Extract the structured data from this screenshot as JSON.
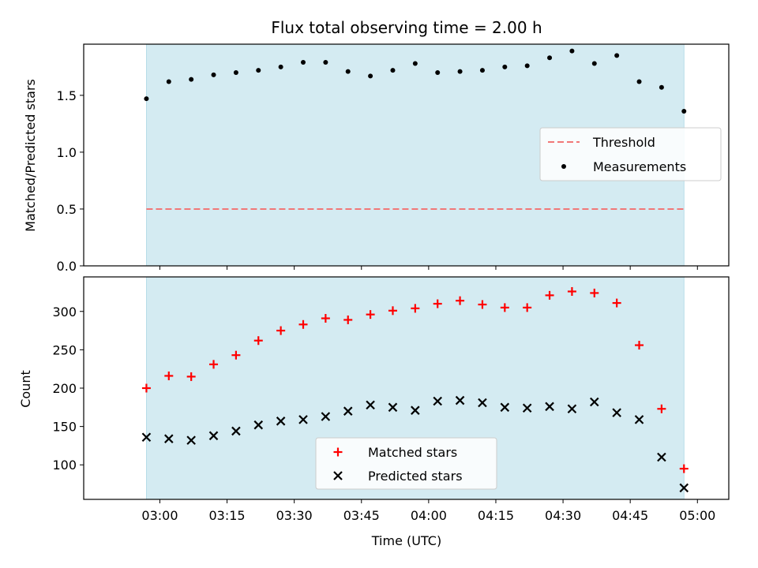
{
  "chart_data": [
    {
      "type": "scatter",
      "title": "Flux total observing time = 2.00 h",
      "ylabel": "Matched/Predicted stars",
      "ylim": [
        0.0,
        1.95
      ],
      "yticks": [
        0.0,
        0.5,
        1.0,
        1.5
      ],
      "ytick_labels": [
        "0.0",
        "0.5",
        "1.0",
        "1.5"
      ],
      "shaded_band": {
        "x_start": "02:57",
        "x_end": "04:57",
        "color": "#d4ebf2"
      },
      "legend_position": "center-right",
      "threshold": {
        "name": "Threshold",
        "y": 0.5,
        "x_start": "02:57",
        "x_end": "04:57",
        "color": "#f07878"
      },
      "series": [
        {
          "name": "Measurements",
          "color": "#000000",
          "x": [
            "02:57",
            "03:02",
            "03:07",
            "03:12",
            "03:17",
            "03:22",
            "03:27",
            "03:32",
            "03:37",
            "03:42",
            "03:47",
            "03:52",
            "03:57",
            "04:02",
            "04:07",
            "04:12",
            "04:17",
            "04:22",
            "04:27",
            "04:32",
            "04:37",
            "04:42",
            "04:47",
            "04:52",
            "04:57"
          ],
          "values": [
            1.47,
            1.62,
            1.64,
            1.68,
            1.7,
            1.72,
            1.75,
            1.79,
            1.79,
            1.71,
            1.67,
            1.72,
            1.78,
            1.7,
            1.71,
            1.72,
            1.75,
            1.76,
            1.83,
            1.89,
            1.78,
            1.85,
            1.62,
            1.57,
            1.36
          ]
        }
      ]
    },
    {
      "type": "scatter",
      "xlabel": "Time (UTC)",
      "ylabel": "Count",
      "xlim": [
        "02:43",
        "05:07"
      ],
      "ylim": [
        55,
        345
      ],
      "yticks": [
        100,
        150,
        200,
        250,
        300
      ],
      "ytick_labels": [
        "100",
        "150",
        "200",
        "250",
        "300"
      ],
      "xticks": [
        "03:00",
        "03:15",
        "03:30",
        "03:45",
        "04:00",
        "04:15",
        "04:30",
        "04:45",
        "05:00"
      ],
      "shaded_band": {
        "x_start": "02:57",
        "x_end": "04:57",
        "color": "#d4ebf2"
      },
      "legend_position": "lower-center",
      "series": [
        {
          "name": "Matched stars",
          "marker": "plus",
          "color": "#ff0000",
          "x": [
            "02:57",
            "03:02",
            "03:07",
            "03:12",
            "03:17",
            "03:22",
            "03:27",
            "03:32",
            "03:37",
            "03:42",
            "03:47",
            "03:52",
            "03:57",
            "04:02",
            "04:07",
            "04:12",
            "04:17",
            "04:22",
            "04:27",
            "04:32",
            "04:37",
            "04:42",
            "04:47",
            "04:52",
            "04:57"
          ],
          "values": [
            200,
            216,
            215,
            231,
            243,
            262,
            275,
            283,
            291,
            289,
            296,
            301,
            304,
            310,
            314,
            309,
            305,
            305,
            321,
            326,
            324,
            311,
            256,
            173,
            95
          ]
        },
        {
          "name": "Predicted stars",
          "marker": "x",
          "color": "#000000",
          "x": [
            "02:57",
            "03:02",
            "03:07",
            "03:12",
            "03:17",
            "03:22",
            "03:27",
            "03:32",
            "03:37",
            "03:42",
            "03:47",
            "03:52",
            "03:57",
            "04:02",
            "04:07",
            "04:12",
            "04:17",
            "04:22",
            "04:27",
            "04:32",
            "04:37",
            "04:42",
            "04:47",
            "04:52",
            "04:57"
          ],
          "values": [
            136,
            134,
            132,
            138,
            144,
            152,
            157,
            159,
            163,
            170,
            178,
            175,
            171,
            183,
            184,
            181,
            175,
            174,
            176,
            173,
            182,
            168,
            159,
            110,
            70
          ]
        }
      ]
    }
  ]
}
